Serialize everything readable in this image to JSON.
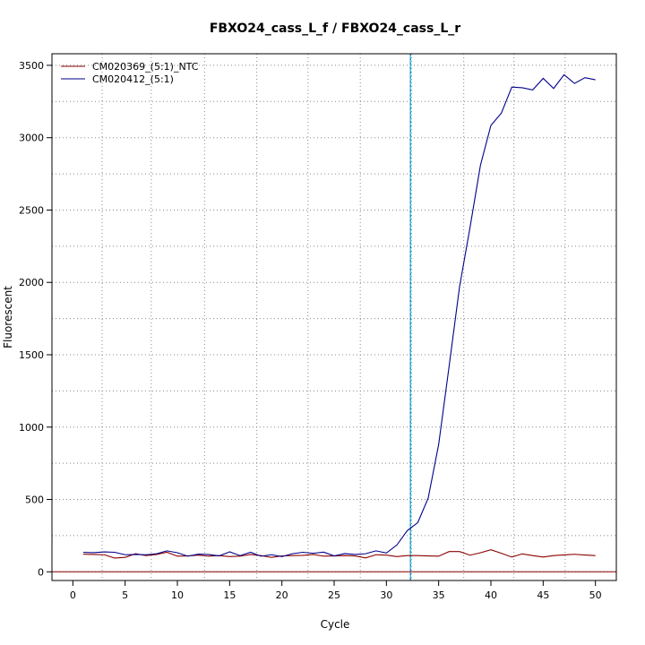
{
  "chart_data": {
    "type": "line",
    "title": "FBXO24_cass_L_f / FBXO24_cass_L_r",
    "xlabel": "Cycle",
    "ylabel": "Fluorescent",
    "xlim": [
      -2,
      52
    ],
    "ylim": [
      -60,
      3580
    ],
    "x_ticks": [
      0,
      5,
      10,
      15,
      20,
      25,
      30,
      35,
      40,
      45,
      50
    ],
    "y_ticks": [
      0,
      500,
      1000,
      1500,
      2000,
      2500,
      3000,
      3500
    ],
    "x_grid": [
      2.8,
      7.5,
      12.6,
      17.6,
      22.5,
      27.5,
      32.4,
      37.4,
      42.2,
      47.1
    ],
    "y_grid": [
      0,
      250,
      500,
      750,
      1000,
      1250,
      1500,
      1750,
      2000,
      2250,
      2500,
      2750,
      3000,
      3250,
      3500
    ],
    "grid": true,
    "legend_position": "top-left",
    "threshold_cycle": 32.3,
    "baseline_y": 0,
    "colors": {
      "ntc": "#8b0000",
      "sample": "#00008b",
      "threshold": "#00bcd4",
      "baseline": "#8b0000",
      "grid": "#888888"
    },
    "x": [
      1,
      2,
      3,
      4,
      5,
      6,
      7,
      8,
      9,
      10,
      11,
      12,
      13,
      14,
      15,
      16,
      17,
      18,
      19,
      20,
      21,
      22,
      23,
      24,
      25,
      26,
      27,
      28,
      29,
      30,
      31,
      32,
      33,
      34,
      35,
      36,
      37,
      38,
      39,
      40,
      41,
      42,
      43,
      44,
      45,
      46,
      47,
      48,
      49,
      50
    ],
    "series": [
      {
        "name": "CM020369_(5:1)_NTC",
        "color": "#8b0000",
        "values": [
          122,
          120,
          118,
          95,
          100,
          125,
          112,
          120,
          135,
          108,
          110,
          115,
          108,
          112,
          105,
          108,
          120,
          112,
          100,
          110,
          112,
          114,
          120,
          108,
          110,
          112,
          110,
          96,
          118,
          115,
          105,
          112,
          112,
          110,
          108,
          140,
          140,
          115,
          132,
          152,
          128,
          102,
          124,
          112,
          102,
          112,
          117,
          121,
          116,
          112
        ]
      },
      {
        "name": "CM020412_(5:1)",
        "color": "#00008b",
        "values": [
          135,
          132,
          138,
          135,
          118,
          120,
          118,
          125,
          145,
          132,
          108,
          122,
          120,
          110,
          138,
          112,
          135,
          108,
          118,
          105,
          125,
          135,
          128,
          136,
          110,
          126,
          120,
          125,
          145,
          130,
          185,
          285,
          340,
          510,
          880,
          1420,
          1970,
          2380,
          2810,
          3085,
          3170,
          3350,
          3345,
          3330,
          3410,
          3340,
          3435,
          3375,
          3415,
          3400
        ]
      }
    ]
  }
}
